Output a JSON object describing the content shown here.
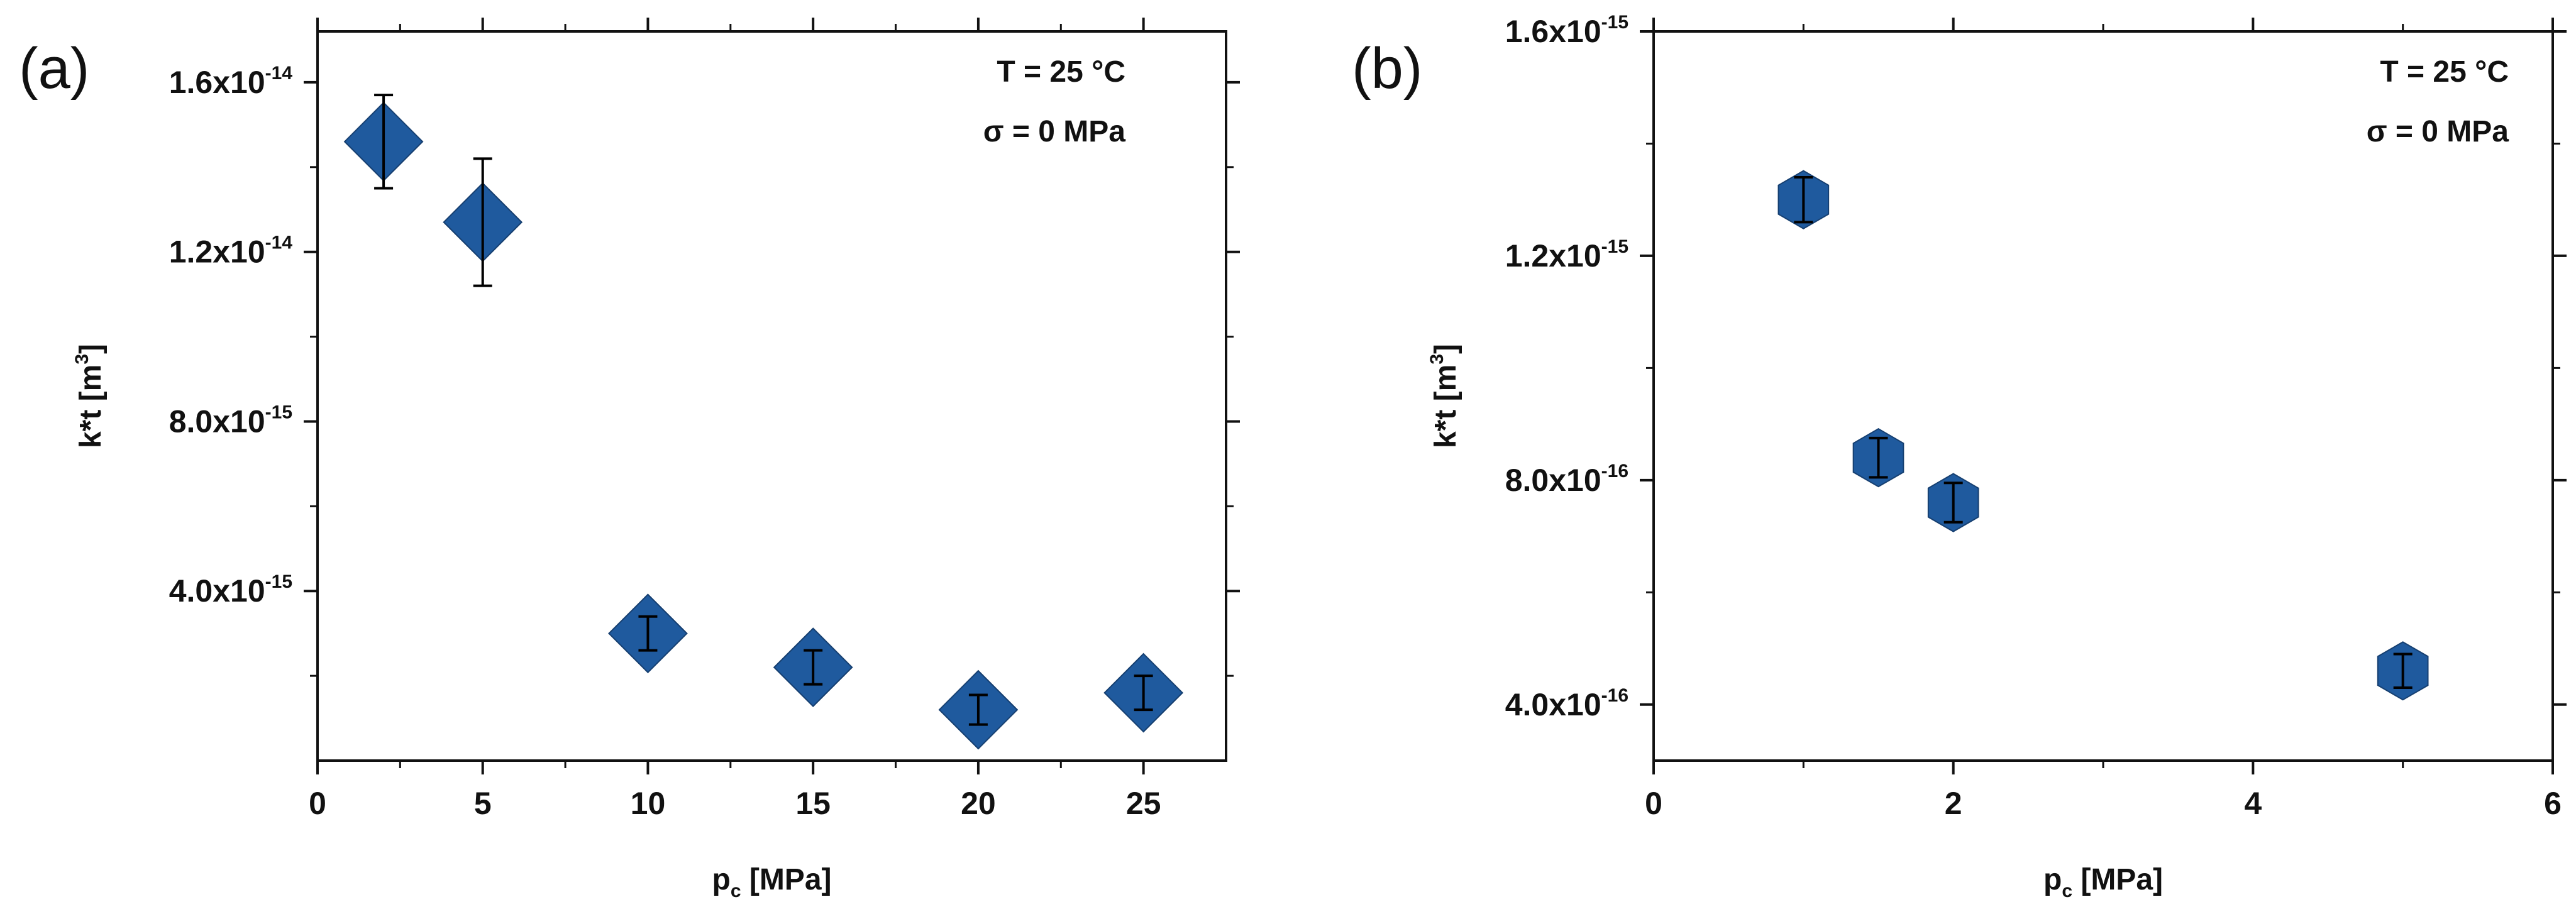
{
  "chart_data": [
    {
      "panel_label": "(a)",
      "type": "scatter",
      "marker": "diamond",
      "color": "#1f5a9e",
      "xlabel": {
        "main": "p",
        "sub": "c",
        "rest": " [MPa]"
      },
      "ylabel": {
        "main": "k*t [m",
        "sup": "3",
        "rest": "]"
      },
      "xlim": [
        0,
        27.5
      ],
      "ylim": [
        0,
        1.72e-14
      ],
      "xticks": [
        0,
        5,
        10,
        15,
        20,
        25
      ],
      "xtick_labels": [
        "0",
        "5",
        "10",
        "15",
        "20",
        "25"
      ],
      "yticks": [
        4e-15,
        8e-15,
        1.2e-14,
        1.6e-14
      ],
      "ytick_labels": [
        {
          "mantissa": "4.0x10",
          "exp": "-15"
        },
        {
          "mantissa": "8.0x10",
          "exp": "-15"
        },
        {
          "mantissa": "1.2x10",
          "exp": "-14"
        },
        {
          "mantissa": "1.6x10",
          "exp": "-14"
        }
      ],
      "annotations": [
        "T = 25 °C",
        "σ = 0 MPa"
      ],
      "points": [
        {
          "x": 2,
          "y": 1.46e-14,
          "err": 1.1e-15
        },
        {
          "x": 5,
          "y": 1.27e-14,
          "err": 1.5e-15
        },
        {
          "x": 10,
          "y": 3e-15,
          "err": 4e-16
        },
        {
          "x": 15,
          "y": 2.2e-15,
          "err": 4e-16
        },
        {
          "x": 20,
          "y": 1.2e-15,
          "err": 3.5e-16
        },
        {
          "x": 25,
          "y": 1.6e-15,
          "err": 4e-16
        }
      ]
    },
    {
      "panel_label": "(b)",
      "type": "scatter",
      "marker": "hexagon",
      "color": "#1f5a9e",
      "xlabel": {
        "main": "p",
        "sub": "c",
        "rest": " [MPa]"
      },
      "ylabel": {
        "main": "k*t [m",
        "sup": "3",
        "rest": "]"
      },
      "xlim": [
        0,
        6
      ],
      "ylim": [
        3e-16,
        1.6e-15
      ],
      "xticks": [
        0,
        2,
        4,
        6
      ],
      "xtick_labels": [
        "0",
        "2",
        "4",
        "6"
      ],
      "yticks": [
        4e-16,
        8e-16,
        1.2e-15,
        1.6e-15
      ],
      "ytick_labels": [
        {
          "mantissa": "4.0x10",
          "exp": "-16"
        },
        {
          "mantissa": "8.0x10",
          "exp": "-16"
        },
        {
          "mantissa": "1.2x10",
          "exp": "-15"
        },
        {
          "mantissa": "1.6x10",
          "exp": "-15"
        }
      ],
      "annotations": [
        "T = 25 °C",
        "σ = 0 MPa"
      ],
      "points": [
        {
          "x": 1,
          "y": 1.3e-15,
          "err": 4e-17
        },
        {
          "x": 1.5,
          "y": 8.4e-16,
          "err": 3.5e-17
        },
        {
          "x": 2,
          "y": 7.6e-16,
          "err": 3.5e-17
        },
        {
          "x": 5,
          "y": 4.6e-16,
          "err": 3e-17
        }
      ]
    }
  ]
}
